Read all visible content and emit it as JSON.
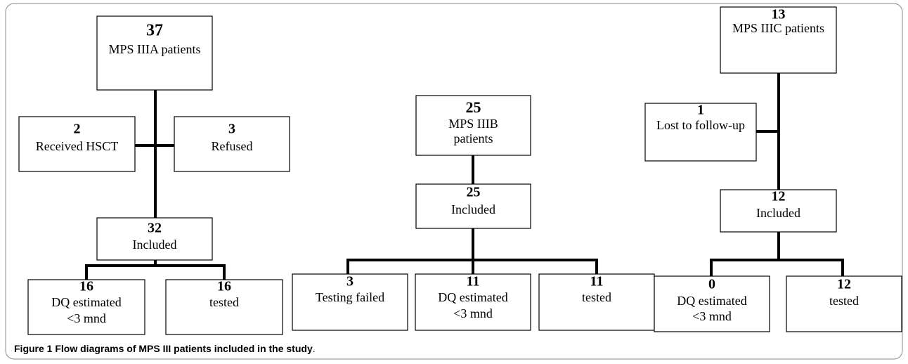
{
  "columns": [
    {
      "nodes": [
        {
          "number": 37,
          "lines": [
            "MPS IIIA patients"
          ]
        },
        {
          "number": 2,
          "lines": [
            "Received HSCT"
          ]
        },
        {
          "number": 3,
          "lines": [
            "Refused"
          ]
        },
        {
          "number": 32,
          "lines": [
            "Included"
          ]
        },
        {
          "number": 16,
          "lines": [
            "DQ estimated",
            "<3 mnd"
          ]
        },
        {
          "number": 16,
          "lines": [
            "tested"
          ]
        }
      ]
    },
    {
      "nodes": [
        {
          "number": 25,
          "lines": [
            "MPS IIIB",
            "patients"
          ]
        },
        {
          "number": 25,
          "lines": [
            "Included"
          ]
        },
        {
          "number": 3,
          "lines": [
            "Testing failed"
          ]
        },
        {
          "number": 11,
          "lines": [
            "DQ estimated",
            "<3 mnd"
          ]
        },
        {
          "number": 11,
          "lines": [
            "tested"
          ]
        }
      ]
    },
    {
      "nodes": [
        {
          "number": 13,
          "lines": [
            "MPS IIIC patients"
          ]
        },
        {
          "number": 1,
          "lines": [
            "Lost to follow-up"
          ]
        },
        {
          "number": 12,
          "lines": [
            "Included"
          ]
        },
        {
          "number": 0,
          "lines": [
            "DQ estimated",
            "<3 mnd"
          ]
        },
        {
          "number": 12,
          "lines": [
            "tested"
          ]
        }
      ]
    }
  ],
  "caption": {
    "label": "Figure 1",
    "text": "Flow diagrams of MPS III patients included in the study",
    "end": "."
  }
}
